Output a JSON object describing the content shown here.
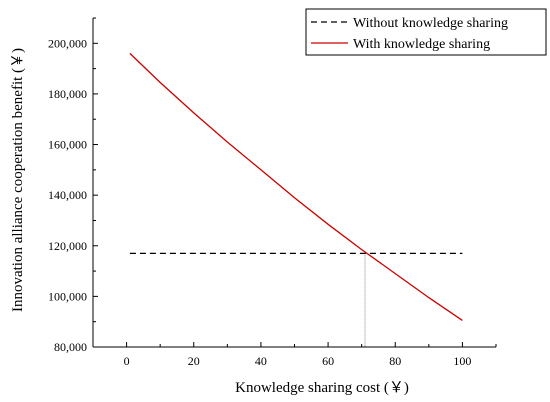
{
  "chart_data": {
    "type": "line",
    "xlabel": "Knowledge sharing cost (￥)",
    "ylabel": "Innovation alliance cooperation benefit (￥)",
    "xlim": [
      -10,
      110
    ],
    "ylim": [
      80000,
      210000
    ],
    "x_ticks": [
      0,
      20,
      40,
      60,
      80,
      100
    ],
    "y_ticks": [
      80000,
      100000,
      120000,
      140000,
      160000,
      180000,
      200000
    ],
    "x_tick_labels": [
      "0",
      "20",
      "40",
      "60",
      "80",
      "100"
    ],
    "y_tick_labels": [
      "80,000",
      "100,000",
      "120,000",
      "140,000",
      "160,000",
      "180,000",
      "200,000"
    ],
    "legend_position": "top-right",
    "grid": false,
    "series": [
      {
        "name": "Without knowledge sharing",
        "style": "dashed",
        "color": "#000000",
        "x": [
          1,
          100
        ],
        "y": [
          117000,
          117000
        ]
      },
      {
        "name": "With knowledge sharing",
        "style": "solid",
        "color": "#cc0000",
        "x": [
          1,
          10,
          20,
          30,
          40,
          50,
          60,
          70,
          80,
          90,
          100
        ],
        "y": [
          196000,
          184500,
          172500,
          161000,
          150000,
          139000,
          128500,
          118500,
          109000,
          99500,
          90500
        ]
      }
    ],
    "annotations": [
      {
        "type": "vertical-line",
        "x": 71,
        "from_y": 80000,
        "to_y": 117000,
        "style": "dotted",
        "color": "#888888"
      }
    ]
  }
}
